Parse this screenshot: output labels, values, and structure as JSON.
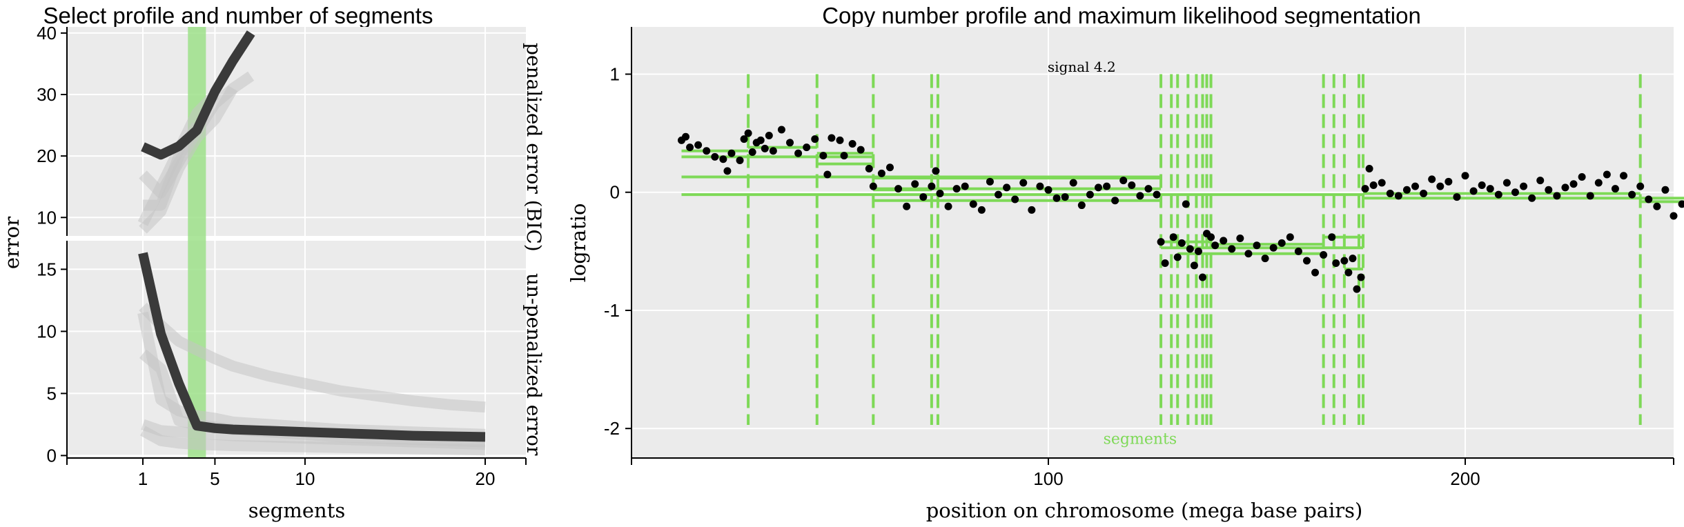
{
  "chart_data": [
    {
      "type": "line",
      "title": "Select profile and number of segments",
      "xlabel": "segments",
      "ylabel": "error",
      "xticks": [
        "1",
        "5",
        "10",
        "20"
      ],
      "xlim": [
        1,
        20
      ],
      "selected_segments": 4,
      "colors": {
        "highlight": "#3a3a3a",
        "other": "#c4c4c4",
        "selection": "#9ee08a"
      },
      "panels": [
        {
          "label": "penalized error (BIC)",
          "ylim": [
            7,
            41
          ],
          "yticks": [
            "10",
            "20",
            "30",
            "40"
          ],
          "series": [
            {
              "highlighted": true,
              "x": [
                1,
                2,
                3,
                4,
                5,
                6,
                7
              ],
              "y": [
                21.5,
                20.2,
                21.6,
                24.2,
                30.5,
                35.5,
                40
              ]
            },
            {
              "highlighted": false,
              "x": [
                1,
                2,
                3,
                4,
                5,
                6,
                7
              ],
              "y": [
                17,
                14,
                19,
                24,
                28.5,
                31,
                33
              ]
            },
            {
              "highlighted": false,
              "x": [
                1,
                2,
                3,
                4,
                5,
                6
              ],
              "y": [
                8,
                11,
                18,
                23,
                26,
                31
              ]
            },
            {
              "highlighted": false,
              "x": [
                1,
                2,
                3,
                4,
                5
              ],
              "y": [
                9,
                15,
                21,
                27,
                30
              ]
            },
            {
              "highlighted": false,
              "x": [
                1,
                2,
                3,
                4
              ],
              "y": [
                12,
                12,
                20,
                25
              ]
            }
          ]
        },
        {
          "label": "un-penalized error",
          "ylim": [
            0,
            17
          ],
          "yticks": [
            "0",
            "5",
            "10",
            "15"
          ],
          "series": [
            {
              "highlighted": true,
              "x": [
                1,
                2,
                3,
                4,
                5,
                6,
                8,
                10,
                12,
                14,
                16,
                18,
                20
              ],
              "y": [
                16.3,
                9.8,
                5.8,
                2.4,
                2.2,
                2.1,
                2.0,
                1.9,
                1.8,
                1.7,
                1.6,
                1.55,
                1.5
              ]
            },
            {
              "highlighted": false,
              "x": [
                1,
                2,
                3,
                4,
                5,
                6,
                8,
                10,
                12,
                14,
                16,
                18,
                20
              ],
              "y": [
                12,
                10.5,
                9.2,
                8.5,
                7.8,
                7.2,
                6.4,
                5.8,
                5.2,
                4.8,
                4.4,
                4.1,
                3.9
              ]
            },
            {
              "highlighted": false,
              "x": [
                1,
                2,
                3,
                4,
                5,
                6,
                8,
                10,
                12,
                14,
                16,
                18,
                20
              ],
              "y": [
                11.5,
                4.5,
                3.6,
                3.2,
                3.0,
                2.7,
                2.5,
                2.3,
                2.1,
                2.0,
                1.9,
                1.8,
                1.7
              ]
            },
            {
              "highlighted": false,
              "x": [
                1,
                2,
                3,
                4,
                5,
                6,
                8,
                10,
                12,
                14,
                16,
                18,
                20
              ],
              "y": [
                8.2,
                7.0,
                2.8,
                2.5,
                2.3,
                2.1,
                1.9,
                1.7,
                1.5,
                1.4,
                1.3,
                1.2,
                1.1
              ]
            },
            {
              "highlighted": false,
              "x": [
                1,
                2,
                3,
                4,
                5,
                6,
                8,
                10,
                12,
                14,
                16,
                18,
                20
              ],
              "y": [
                2.5,
                2.0,
                1.9,
                1.8,
                1.7,
                1.6,
                1.5,
                1.4,
                1.3,
                1.2,
                1.1,
                1.0,
                0.9
              ]
            },
            {
              "highlighted": false,
              "x": [
                1,
                2,
                3,
                4,
                5,
                6,
                8,
                10,
                12,
                14,
                16,
                18,
                20
              ],
              "y": [
                2.0,
                1.2,
                1.0,
                0.9,
                0.85,
                0.8,
                0.75,
                0.7,
                0.65,
                0.6,
                0.55,
                0.5,
                0.45
              ]
            }
          ]
        }
      ]
    },
    {
      "type": "scatter",
      "title": "Copy number profile and maximum likelihood segmentation",
      "xlabel": "position on chromosome (mega base pairs)",
      "ylabel": "logratio",
      "xlim": [
        0,
        250
      ],
      "ylim": [
        -2.25,
        1.4
      ],
      "xticks": [
        "100",
        "200"
      ],
      "yticks": [
        "1",
        "0",
        "-1",
        "-2"
      ],
      "annotation": {
        "text": "signal 4.2",
        "x": 108,
        "y": 1.02
      },
      "segments_label": {
        "text": "segments",
        "x": 122,
        "y": -2.13
      },
      "colors": {
        "points": "#000000",
        "segments": "#7ed957"
      },
      "breakpoints": [
        28,
        44.5,
        58,
        72,
        73.5,
        127,
        129.5,
        131,
        133.5,
        135.5,
        137,
        138,
        139,
        166,
        168.5,
        171,
        174.5,
        175.5,
        242,
        254
      ],
      "segments": [
        {
          "x": [
            12,
            28
          ],
          "y": 0.35
        },
        {
          "x": [
            28,
            44.5
          ],
          "y": 0.38
        },
        {
          "x": [
            44.5,
            58
          ],
          "y": 0.33
        },
        {
          "x": [
            12,
            58
          ],
          "y": 0.3
        },
        {
          "x": [
            44.5,
            58
          ],
          "y": 0.24
        },
        {
          "x": [
            58,
            72
          ],
          "y": 0.02
        },
        {
          "x": [
            58,
            127
          ],
          "y": 0.12
        },
        {
          "x": [
            58,
            127
          ],
          "y": 0.03
        },
        {
          "x": [
            58,
            127
          ],
          "y": -0.07
        },
        {
          "x": [
            12,
            127
          ],
          "y": 0.13
        },
        {
          "x": [
            12,
            175.5
          ],
          "y": -0.02
        },
        {
          "x": [
            127,
            139
          ],
          "y": -0.42
        },
        {
          "x": [
            139,
            166
          ],
          "y": -0.44
        },
        {
          "x": [
            127,
            175.5
          ],
          "y": -0.47
        },
        {
          "x": [
            131,
            166
          ],
          "y": -0.52
        },
        {
          "x": [
            166,
            175.5
          ],
          "y": -0.38
        },
        {
          "x": [
            171,
            175.5
          ],
          "y": -0.65
        },
        {
          "x": [
            175.5,
            242
          ],
          "y": -0.01
        },
        {
          "x": [
            175.5,
            254
          ],
          "y": -0.05
        },
        {
          "x": [
            242,
            254
          ],
          "y": -0.08
        }
      ],
      "points": {
        "x": [
          12,
          13,
          14,
          16,
          18,
          20,
          22,
          23,
          24,
          26,
          27,
          28,
          29,
          30,
          31,
          32,
          33,
          34,
          36,
          38,
          40,
          42,
          44,
          46,
          47,
          48,
          50,
          51,
          53,
          55,
          57,
          58,
          60,
          62,
          64,
          66,
          68,
          70,
          72,
          73,
          74,
          76,
          78,
          80,
          82,
          84,
          86,
          88,
          90,
          92,
          94,
          96,
          98,
          100,
          102,
          104,
          106,
          108,
          110,
          112,
          114,
          116,
          118,
          120,
          122,
          124,
          126,
          127,
          128,
          130,
          131,
          132,
          133,
          134,
          135,
          136,
          137,
          138,
          139,
          140,
          142,
          144,
          146,
          148,
          150,
          152,
          154,
          156,
          158,
          160,
          162,
          164,
          166,
          168,
          169,
          171,
          172,
          173,
          174,
          175,
          176,
          177,
          178,
          180,
          182,
          184,
          186,
          188,
          190,
          192,
          194,
          196,
          198,
          200,
          202,
          204,
          206,
          208,
          210,
          212,
          214,
          216,
          218,
          220,
          222,
          224,
          226,
          228,
          230,
          232,
          234,
          236,
          238,
          240,
          242,
          244,
          246,
          248,
          250,
          252,
          254
        ],
        "y": [
          0.44,
          0.47,
          0.38,
          0.4,
          0.35,
          0.3,
          0.28,
          0.18,
          0.33,
          0.27,
          0.45,
          0.5,
          0.34,
          0.42,
          0.44,
          0.37,
          0.48,
          0.35,
          0.53,
          0.42,
          0.33,
          0.38,
          0.45,
          0.31,
          0.15,
          0.46,
          0.44,
          0.31,
          0.41,
          0.36,
          0.2,
          0.05,
          0.16,
          0.21,
          0.03,
          -0.12,
          0.07,
          -0.04,
          0.05,
          0.18,
          -0.01,
          -0.12,
          0.03,
          0.05,
          -0.1,
          -0.15,
          0.09,
          -0.02,
          0.04,
          -0.06,
          0.08,
          -0.15,
          0.05,
          0.02,
          -0.05,
          -0.04,
          0.08,
          -0.11,
          -0.02,
          0.04,
          0.05,
          -0.07,
          0.1,
          0.06,
          -0.03,
          0.03,
          -0.02,
          -0.42,
          -0.6,
          -0.38,
          -0.55,
          -0.43,
          -0.1,
          -0.48,
          -0.62,
          -0.5,
          -0.72,
          -0.35,
          -0.38,
          -0.45,
          -0.41,
          -0.48,
          -0.39,
          -0.52,
          -0.45,
          -0.56,
          -0.47,
          -0.43,
          -0.38,
          -0.5,
          -0.58,
          -0.68,
          -0.53,
          -0.38,
          -0.6,
          -0.58,
          -0.68,
          -0.56,
          -0.82,
          -0.72,
          0.03,
          0.2,
          0.06,
          0.08,
          -0.01,
          -0.03,
          0.02,
          0.05,
          -0.01,
          0.11,
          0.05,
          0.09,
          -0.04,
          0.14,
          0.01,
          0.06,
          0.03,
          -0.02,
          0.08,
          0.0,
          0.05,
          -0.05,
          0.1,
          0.02,
          -0.03,
          0.04,
          0.07,
          0.13,
          -0.03,
          0.08,
          0.15,
          0.03,
          0.14,
          -0.02,
          0.05,
          -0.06,
          -0.12,
          0.02,
          -0.2,
          -0.1,
          0.17
        ]
      }
    }
  ]
}
